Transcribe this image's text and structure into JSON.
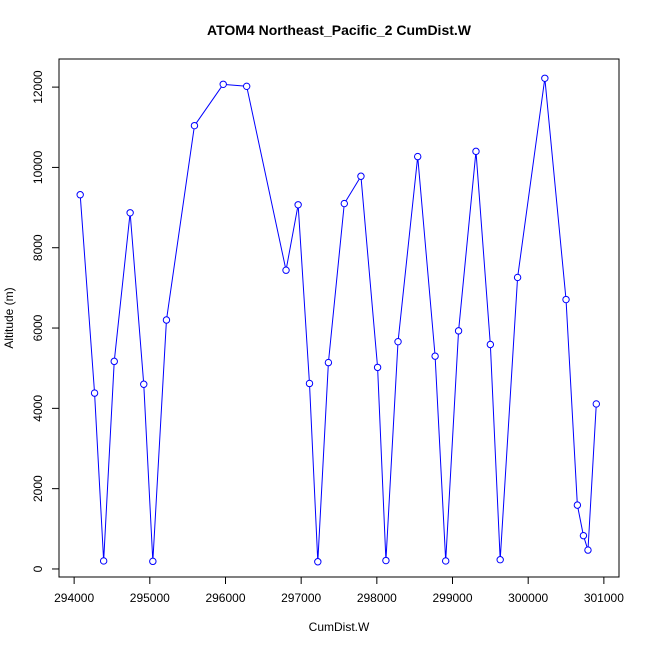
{
  "chart_data": {
    "type": "line",
    "title": "ATOM4 Northeast_Pacific_2 CumDist.W",
    "xlabel": "CumDist.W",
    "ylabel": "Altitude (m)",
    "xlim": [
      293800,
      301200
    ],
    "ylim": [
      -200,
      12700
    ],
    "x_ticks": [
      294000,
      295000,
      296000,
      297000,
      298000,
      299000,
      300000,
      301000
    ],
    "y_ticks": [
      0,
      2000,
      4000,
      6000,
      8000,
      10000,
      12000
    ],
    "x_tick_labels": [
      "294000",
      "295000",
      "296000",
      "297000",
      "298000",
      "299000",
      "300000",
      "301000"
    ],
    "y_tick_labels": [
      "0",
      "2000",
      "4000",
      "6000",
      "8000",
      "10000",
      "12000"
    ],
    "grid": false,
    "series": [
      {
        "color": "#0000ff",
        "marker": "open-circle",
        "x": [
          294080,
          294270,
          294390,
          294530,
          294740,
          294920,
          295040,
          295220,
          295590,
          295970,
          296280,
          296800,
          296960,
          297110,
          297220,
          297360,
          297570,
          297790,
          298010,
          298120,
          298280,
          298540,
          298770,
          298910,
          299080,
          299310,
          299500,
          299630,
          299860,
          300220,
          300500,
          300650,
          300730,
          300790,
          300900
        ],
        "y": [
          9320,
          4380,
          200,
          5170,
          8870,
          4600,
          190,
          6200,
          11040,
          12070,
          12020,
          7440,
          9070,
          4620,
          180,
          5140,
          9100,
          9780,
          5020,
          210,
          5660,
          10270,
          5300,
          200,
          5930,
          10400,
          5590,
          230,
          7260,
          12220,
          6710,
          1590,
          830,
          470,
          4110
        ]
      }
    ]
  }
}
